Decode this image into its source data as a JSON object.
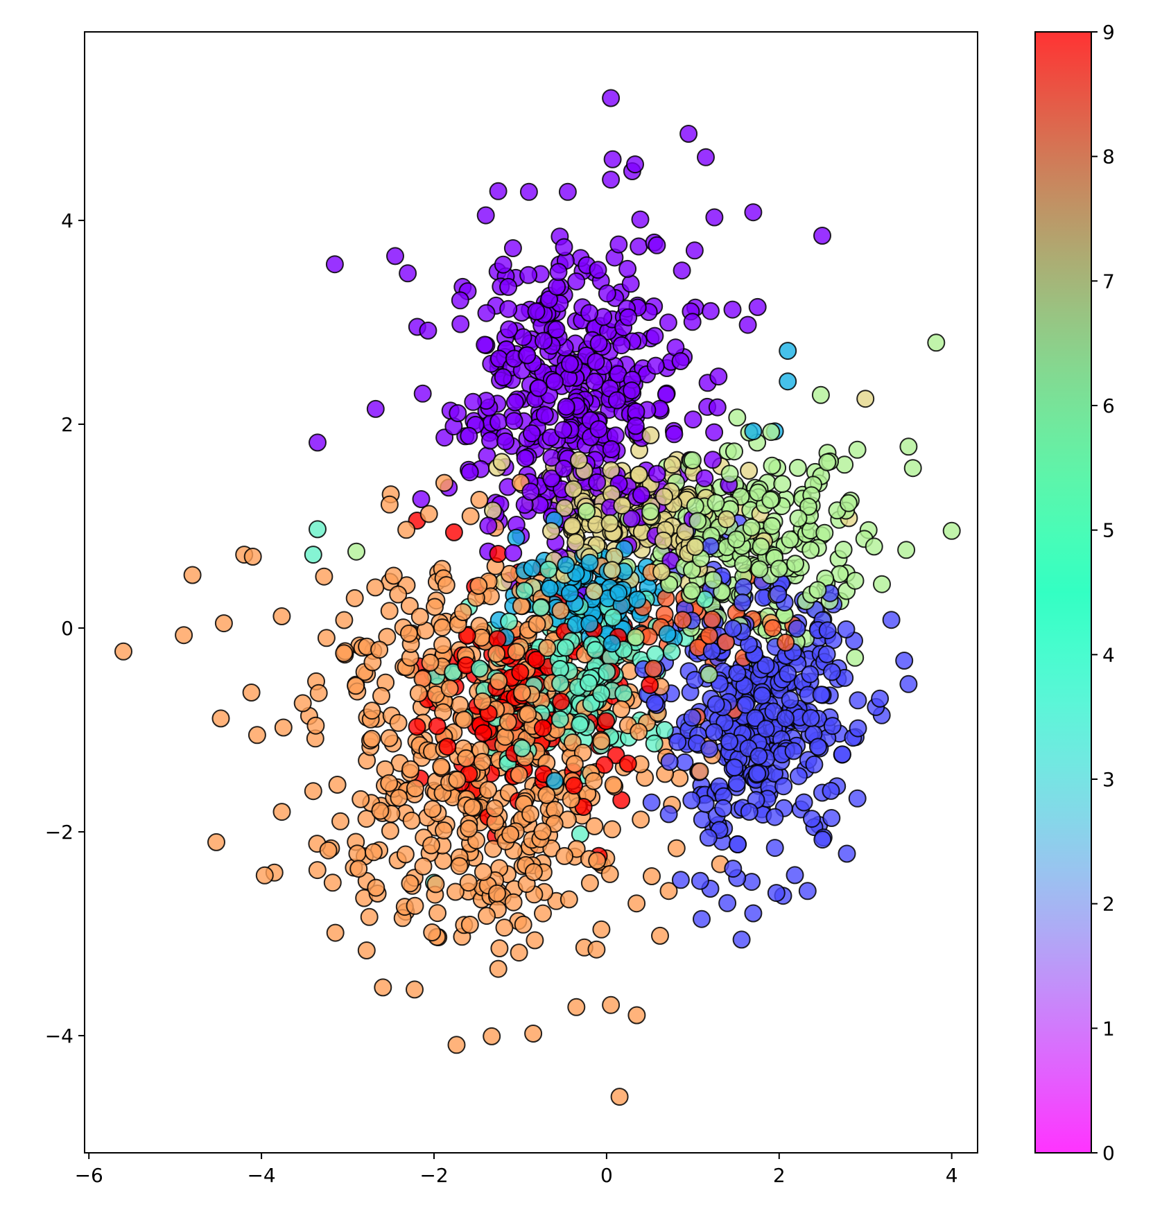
{
  "chart_data": {
    "type": "scatter",
    "title": "",
    "xlabel": "",
    "ylabel": "",
    "xlim": [
      -6.05,
      4.3
    ],
    "ylim": [
      -5.15,
      5.85
    ],
    "grid": false,
    "x_ticks": [
      -6,
      -4,
      -2,
      0,
      2,
      4
    ],
    "x_tick_labels": [
      "−6",
      "−4",
      "−2",
      "0",
      "2",
      "4"
    ],
    "y_ticks": [
      -4,
      -2,
      0,
      2,
      4
    ],
    "y_tick_labels": [
      "−4",
      "−2",
      "0",
      "2",
      "4"
    ],
    "marker": {
      "alpha": 0.8,
      "edgecolor": "#000000"
    },
    "colormap": "rainbow",
    "colorbar": {
      "range": [
        0,
        9
      ],
      "ticks": [
        0,
        1,
        2,
        3,
        4,
        5,
        6,
        7,
        8,
        9
      ],
      "tick_labels": [
        "0",
        "1",
        "2",
        "3",
        "4",
        "5",
        "6",
        "7",
        "8",
        "9"
      ]
    },
    "clusters": [
      {
        "label": 0,
        "color": "#8000ff",
        "center": [
          -0.4,
          2.25
        ],
        "spread": [
          0.7,
          0.75
        ],
        "count": 430
      },
      {
        "label": 1,
        "color": "#4c4cfe",
        "center": [
          1.75,
          -0.9
        ],
        "spread": [
          0.55,
          0.65
        ],
        "count": 380
      },
      {
        "label": 2,
        "color": "#18b2e6",
        "center": [
          -0.1,
          0.35
        ],
        "spread": [
          0.45,
          0.25
        ],
        "count": 110
      },
      {
        "label": 4,
        "color": "#66f1c8",
        "center": [
          -0.35,
          -0.5
        ],
        "spread": [
          0.6,
          0.45
        ],
        "count": 170
      },
      {
        "label": 5,
        "color": "#b2f196",
        "center": [
          1.7,
          0.8
        ],
        "spread": [
          0.65,
          0.45
        ],
        "count": 230
      },
      {
        "label": 6,
        "color": "#e5d78a",
        "center": [
          0.3,
          1.05
        ],
        "spread": [
          0.7,
          0.35
        ],
        "count": 200
      },
      {
        "label": 7,
        "color": "#ffa05a",
        "center": [
          -1.4,
          -1.15
        ],
        "spread": [
          1.0,
          1.0
        ],
        "count": 560
      },
      {
        "label": 8,
        "color": "#ff6231",
        "center": [
          1.2,
          -0.05
        ],
        "spread": [
          0.45,
          0.3
        ],
        "count": 40
      },
      {
        "label": 9,
        "color": "#ff0000",
        "center": [
          -0.9,
          -0.7
        ],
        "spread": [
          0.55,
          0.55
        ],
        "count": 160
      }
    ],
    "outliers": [
      {
        "x": 0.05,
        "y": 5.2,
        "label": 0
      },
      {
        "x": 0.95,
        "y": 4.85,
        "label": 0
      },
      {
        "x": 1.15,
        "y": 4.62,
        "label": 0
      },
      {
        "x": 0.07,
        "y": 4.6,
        "label": 0
      },
      {
        "x": 0.33,
        "y": 4.55,
        "label": 0
      },
      {
        "x": 0.05,
        "y": 4.4,
        "label": 0
      },
      {
        "x": -0.9,
        "y": 4.28,
        "label": 0
      },
      {
        "x": -0.45,
        "y": 4.28,
        "label": 0
      },
      {
        "x": 1.7,
        "y": 4.08,
        "label": 0
      },
      {
        "x": -1.4,
        "y": 4.05,
        "label": 0
      },
      {
        "x": 1.25,
        "y": 4.03,
        "label": 0
      },
      {
        "x": 2.5,
        "y": 3.85,
        "label": 0
      },
      {
        "x": -3.15,
        "y": 3.57,
        "label": 0
      },
      {
        "x": -2.45,
        "y": 3.65,
        "label": 0
      },
      {
        "x": 1.75,
        "y": 3.15,
        "label": 0
      },
      {
        "x": -3.35,
        "y": 1.82,
        "label": 0
      },
      {
        "x": 2.1,
        "y": 2.72,
        "label": 2
      },
      {
        "x": 2.1,
        "y": 2.42,
        "label": 2
      },
      {
        "x": 1.7,
        "y": 1.93,
        "label": 2
      },
      {
        "x": 1.95,
        "y": 1.93,
        "label": 2
      },
      {
        "x": -0.6,
        "y": -1.5,
        "label": 2
      },
      {
        "x": 3.82,
        "y": 2.8,
        "label": 5
      },
      {
        "x": 3.0,
        "y": 2.25,
        "label": 6
      },
      {
        "x": 3.55,
        "y": 1.57,
        "label": 5
      },
      {
        "x": 3.5,
        "y": 1.78,
        "label": 5
      },
      {
        "x": 3.1,
        "y": 0.8,
        "label": 5
      },
      {
        "x": -3.35,
        "y": 0.97,
        "label": 4
      },
      {
        "x": -3.4,
        "y": 0.72,
        "label": 4
      },
      {
        "x": -2.9,
        "y": 0.75,
        "label": 5
      },
      {
        "x": 3.45,
        "y": -0.32,
        "label": 1
      },
      {
        "x": 3.5,
        "y": -0.55,
        "label": 1
      },
      {
        "x": 3.3,
        "y": 0.08,
        "label": 1
      },
      {
        "x": 1.7,
        "y": -2.8,
        "label": 1
      },
      {
        "x": 1.4,
        "y": -2.7,
        "label": 1
      },
      {
        "x": 2.25,
        "y": -1.78,
        "label": 1
      },
      {
        "x": -5.6,
        "y": -0.23,
        "label": 7
      },
      {
        "x": -4.9,
        "y": -0.07,
        "label": 7
      },
      {
        "x": -4.8,
        "y": 0.52,
        "label": 7
      },
      {
        "x": -4.2,
        "y": 0.72,
        "label": 7
      },
      {
        "x": -4.1,
        "y": 0.7,
        "label": 7
      },
      {
        "x": -3.85,
        "y": -2.4,
        "label": 7
      },
      {
        "x": -4.05,
        "y": -1.05,
        "label": 7
      },
      {
        "x": 0.15,
        "y": -4.6,
        "label": 7
      },
      {
        "x": -0.85,
        "y": -3.98,
        "label": 7
      },
      {
        "x": 0.35,
        "y": -3.8,
        "label": 7
      },
      {
        "x": 0.05,
        "y": -3.7,
        "label": 7
      },
      {
        "x": -0.35,
        "y": -3.72,
        "label": 7
      },
      {
        "x": 0.62,
        "y": -3.02,
        "label": 7
      },
      {
        "x": 0.72,
        "y": -2.58,
        "label": 7
      },
      {
        "x": -2.7,
        "y": -2.2,
        "label": 7
      },
      {
        "x": -3.4,
        "y": -1.6,
        "label": 7
      },
      {
        "x": -2.85,
        "y": -1.68,
        "label": 7
      },
      {
        "x": -2.0,
        "y": -2.5,
        "label": 4
      }
    ]
  }
}
